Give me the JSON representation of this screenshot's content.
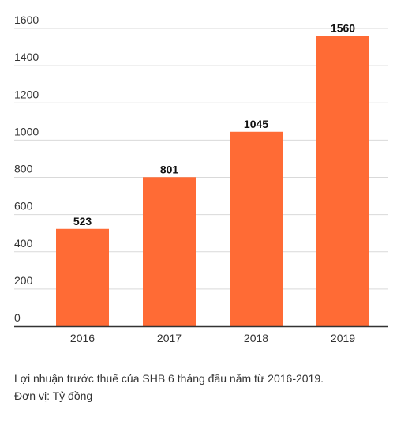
{
  "chart_data": {
    "type": "bar",
    "categories": [
      "2016",
      "2017",
      "2018",
      "2019"
    ],
    "values": [
      523,
      801,
      1045,
      1560
    ],
    "data_labels": [
      "523",
      "801",
      "1045",
      "1560"
    ],
    "yticks": [
      "0",
      "200",
      "400",
      "600",
      "800",
      "1000",
      "1200",
      "1400",
      "1600"
    ],
    "ylim": [
      0,
      1600
    ],
    "grid": true,
    "bar_color": "#ff6b35",
    "title": "",
    "xlabel": "",
    "ylabel": ""
  },
  "caption": {
    "line1": "Lợi nhuận trước thuế của SHB 6 tháng đầu năm từ 2016-2019.",
    "line2": "Đơn vị: Tỷ đồng"
  }
}
